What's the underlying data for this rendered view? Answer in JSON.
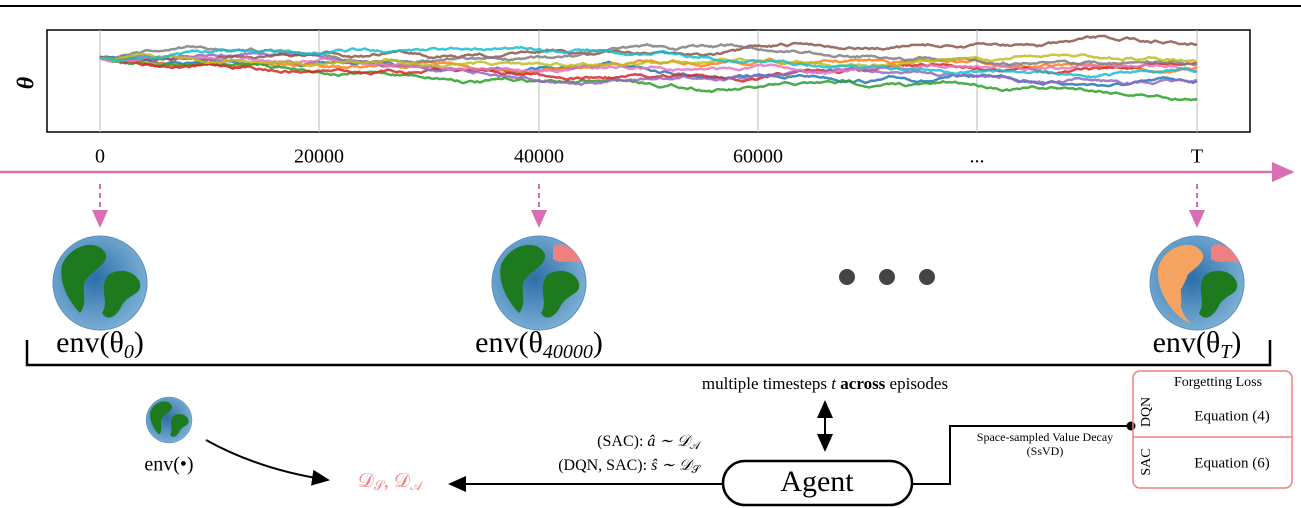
{
  "plot": {
    "y_label": "θ",
    "x_ticks": [
      "0",
      "20000",
      "40000",
      "60000",
      "...",
      "T"
    ]
  },
  "environments": [
    {
      "text": "env(θ",
      "subscript": "0",
      "close": ")"
    },
    {
      "text": "env(θ",
      "subscript": "40000",
      "close": ")"
    },
    {
      "text": "env(θ",
      "subscript": "T",
      "close": ")"
    }
  ],
  "sampler": {
    "text": "env(•)"
  },
  "buffers": {
    "symbol": "𝒟",
    "first": "𝒮",
    "separator": ", ",
    "second": "𝒜"
  },
  "timesteps": {
    "before": "multiple timesteps ",
    "variable": "t",
    "bold": "across",
    "after": " episodes"
  },
  "sampling": [
    {
      "prefix": "(SAC): ",
      "expr": "â ∼ 𝒟",
      "subscript": "𝒜"
    },
    {
      "prefix": "(DQN, SAC): ",
      "expr": "ŝ ∼ 𝒟",
      "subscript": "𝒮"
    }
  ],
  "agent": "Agent",
  "decay_label": [
    "Space-sampled Value Decay",
    "(SsVD)"
  ],
  "forgetting_loss": {
    "title": "Forgetting Loss",
    "rows": [
      {
        "method": "DQN",
        "equation": "Equation (4)"
      },
      {
        "method": "SAC",
        "equation": "Equation (6)"
      }
    ]
  }
}
